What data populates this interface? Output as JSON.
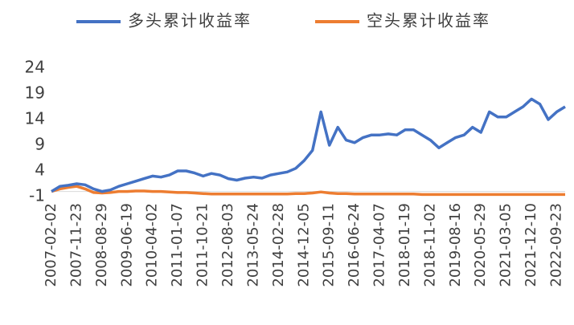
{
  "chart_data": {
    "type": "line",
    "categories": [
      "2007-02-02",
      null,
      null,
      "2007-11-23",
      null,
      null,
      "2008-08-29",
      null,
      null,
      "2009-06-19",
      null,
      null,
      "2010-04-02",
      null,
      null,
      "2011-01-07",
      null,
      null,
      "2011-10-21",
      null,
      null,
      "2012-08-03",
      null,
      null,
      "2013-05-24",
      null,
      null,
      "2014-02-28",
      null,
      null,
      "2014-12-05",
      null,
      null,
      "2015-09-11",
      null,
      null,
      "2016-06-24",
      null,
      null,
      "2017-04-07",
      null,
      null,
      "2018-01-19",
      null,
      null,
      "2018-11-02",
      null,
      null,
      "2019-08-16",
      null,
      null,
      "2020-05-29",
      null,
      null,
      "2021-03-05",
      null,
      null,
      "2021-12-10",
      null,
      null,
      "2022-09-23",
      null
    ],
    "series": [
      {
        "name": "多头累计收益率",
        "color": "#4472c4",
        "values": [
          0,
          1,
          1.2,
          1.5,
          1.3,
          0.5,
          0,
          0.3,
          1,
          1.5,
          2,
          2.5,
          3,
          2.8,
          3.2,
          4,
          4,
          3.6,
          3,
          3.5,
          3.2,
          2.5,
          2.2,
          2.6,
          2.8,
          2.6,
          3.2,
          3.5,
          3.8,
          4.5,
          6,
          8,
          15.5,
          9,
          12.5,
          10,
          9.5,
          10.5,
          11,
          11,
          11.2,
          11,
          12,
          12,
          11,
          10,
          8.5,
          9.5,
          10.5,
          11,
          12.5,
          11.5,
          15.5,
          14.5,
          14.5,
          15.5,
          16.5,
          18,
          17,
          14,
          15.5,
          16.5
        ]
      },
      {
        "name": "空头累计收益率",
        "color": "#ed7d31",
        "values": [
          0,
          0.5,
          0.8,
          1,
          0.5,
          -0.2,
          -0.3,
          -0.2,
          0,
          0,
          0.1,
          0.1,
          0,
          0,
          -0.1,
          -0.2,
          -0.2,
          -0.3,
          -0.4,
          -0.5,
          -0.5,
          -0.5,
          -0.5,
          -0.5,
          -0.5,
          -0.5,
          -0.5,
          -0.5,
          -0.5,
          -0.4,
          -0.4,
          -0.3,
          -0.1,
          -0.3,
          -0.4,
          -0.4,
          -0.5,
          -0.5,
          -0.5,
          -0.5,
          -0.5,
          -0.5,
          -0.5,
          -0.5,
          -0.6,
          -0.6,
          -0.6,
          -0.6,
          -0.6,
          -0.6,
          -0.6,
          -0.6,
          -0.6,
          -0.6,
          -0.6,
          -0.6,
          -0.6,
          -0.6,
          -0.6,
          -0.6,
          -0.6,
          -0.6
        ]
      }
    ],
    "ylim": [
      -1,
      24
    ],
    "yticks": [
      -1,
      4,
      9,
      14,
      19,
      24
    ]
  }
}
